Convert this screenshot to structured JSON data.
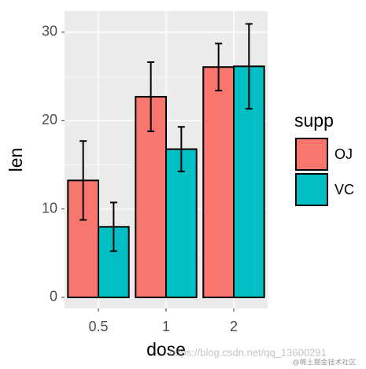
{
  "chart_data": {
    "type": "bar",
    "x_label": "dose",
    "y_label": "len",
    "legend_title": "supp",
    "categories": [
      "0.5",
      "1",
      "2"
    ],
    "series": [
      {
        "name": "OJ",
        "color": "#F8766D",
        "values": [
          13.23,
          22.7,
          26.06
        ],
        "errors": [
          4.46,
          3.91,
          2.66
        ]
      },
      {
        "name": "VC",
        "color": "#00BFC4",
        "values": [
          7.98,
          16.77,
          26.14
        ],
        "errors": [
          2.75,
          2.52,
          4.8
        ]
      }
    ],
    "ylim": [
      -1.25,
      32.4
    ],
    "yticks": [
      0,
      10,
      20,
      30
    ],
    "grid": true,
    "watermarks": [
      "https://blog.csdn.net/qq_13600291",
      "@稀土掘金技术社区"
    ]
  }
}
